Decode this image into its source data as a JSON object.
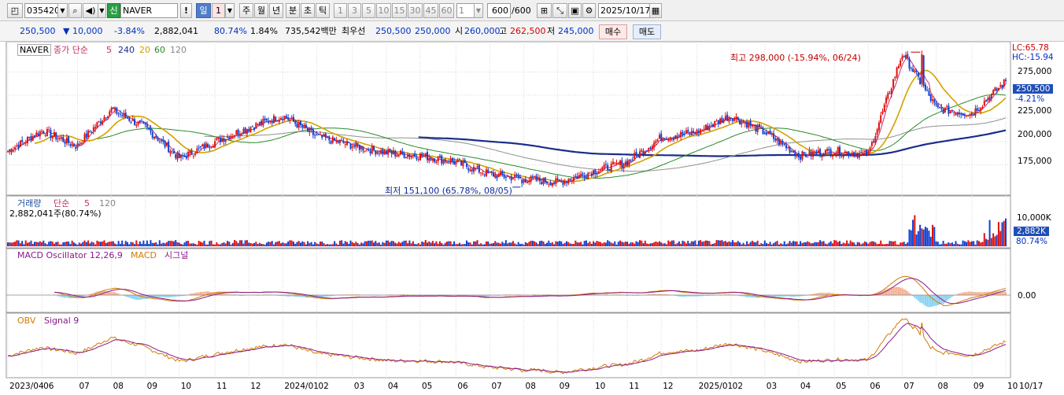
{
  "toolbar": {
    "code": "035420",
    "new_badge": "신",
    "stock_name": "NAVER",
    "warn": "!",
    "periods": [
      "일",
      "1",
      "주",
      "월",
      "년",
      "분",
      "초",
      "틱"
    ],
    "ticks": [
      "1",
      "3",
      "5",
      "10",
      "15",
      "30",
      "45",
      "60"
    ],
    "count": "1",
    "range": "600",
    "range_total": "/600",
    "date": "2025/10/17"
  },
  "quote": {
    "price": "250,500",
    "change": "▼ 10,000",
    "change_pct": "-3.84%",
    "volume": "2,882,041",
    "vol_ratio": "80.74%",
    "turnover": "1.84%",
    "amount": "735,542백만",
    "best_label": "최우선",
    "best_ask": "250,500",
    "best_bid": "250,000",
    "open_label": "시",
    "open": "260,000",
    "high_label": "고",
    "high": "262,500",
    "low_label": "저",
    "low": "245,000",
    "buy": "매수",
    "sell": "매도"
  },
  "price_panel": {
    "name": "NAVER",
    "ma_label": "종가 단순",
    "ma": [
      "5",
      "240",
      "20",
      "60",
      "120"
    ],
    "lc": "LC:65.78",
    "hc": "HC:-15.94",
    "max_note": "최고 298,000 (-15.94%, 06/24)",
    "min_note": "최저 151,100 (65.78%, 08/05)",
    "last_price": "250,500",
    "last_pct": "-4.21%",
    "y_ticks": [
      "275,000",
      "250,000",
      "225,000",
      "200,000",
      "175,000"
    ]
  },
  "volume_panel": {
    "title": "거래량",
    "ma_label": "단순",
    "ma": [
      "5",
      "120"
    ],
    "value": "2,882,041주(80.74%)",
    "y_tick": "10,000K",
    "last": "2,882K",
    "last_pct": "80.74%"
  },
  "macd_panel": {
    "osc": "MACD Oscillator 12,26,9",
    "macd": "MACD",
    "signal": "시그널",
    "y_tick": "0.00"
  },
  "obv_panel": {
    "obv": "OBV",
    "signal": "Signal 9"
  },
  "x_axis": [
    "2023/04",
    "06",
    "07",
    "08",
    "09",
    "10",
    "11",
    "12",
    "2024/01",
    "02",
    "03",
    "04",
    "05",
    "06",
    "07",
    "08",
    "09",
    "10",
    "11",
    "12",
    "2025/01",
    "02",
    "03",
    "04",
    "05",
    "06",
    "07",
    "08",
    "09",
    "10",
    "10/17"
  ],
  "chart_data": {
    "type": "line",
    "x": [
      "2023/04",
      "2023/06",
      "2023/07",
      "2023/08",
      "2023/09",
      "2023/10",
      "2023/11",
      "2023/12",
      "2024/01",
      "2024/02",
      "2024/03",
      "2024/04",
      "2024/05",
      "2024/06",
      "2024/07",
      "2024/08",
      "2024/09",
      "2024/10",
      "2024/11",
      "2024/12",
      "2025/01",
      "2025/02",
      "2025/03",
      "2025/04",
      "2025/05",
      "2025/06",
      "2025/07",
      "2025/08",
      "2025/09",
      "2025/10"
    ],
    "series": [
      {
        "name": "NAVER",
        "values": [
          190000,
          212000,
          195000,
          235000,
          215000,
          182000,
          200000,
          215000,
          228000,
          205000,
          196000,
          188000,
          185000,
          178000,
          165000,
          160000,
          156000,
          168000,
          178000,
          205000,
          210000,
          228000,
          210000,
          185000,
          190000,
          186000,
          295000,
          235000,
          230000,
          265000
        ]
      }
    ],
    "max": {
      "value": 298000,
      "date": "06/24"
    },
    "min": {
      "value": 151100,
      "date": "08/05"
    },
    "ylim": [
      145000,
      305000
    ],
    "grid": true
  }
}
